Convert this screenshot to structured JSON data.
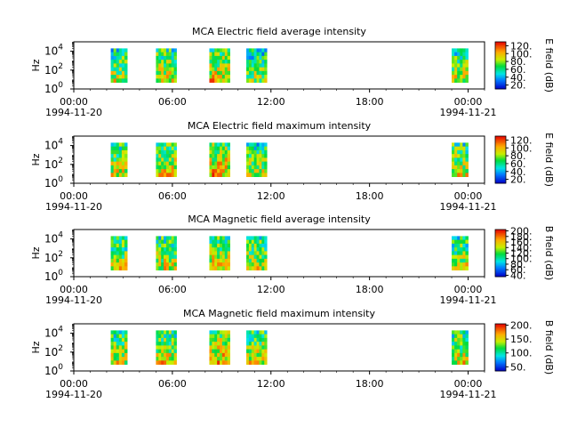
{
  "chart_data": [
    {
      "type": "heatmap",
      "title": "MCA  Electric field average intensity",
      "ylabel": "Hz",
      "yticks": [
        {
          "base": "10",
          "exp": "0"
        },
        {
          "base": "10",
          "exp": "2"
        },
        {
          "base": "10",
          "exp": "4"
        }
      ],
      "xticks": [
        "00:00",
        "06:00",
        "12:00",
        "18:00",
        "00:00"
      ],
      "xdates": [
        "1994-11-20",
        "1994-11-21"
      ],
      "xlim": [
        "1994-11-20 00:00",
        "1994-11-21 01:00"
      ],
      "ylim": [
        1,
        100000
      ],
      "yscale": "log",
      "frequency_range_hz": [
        5,
        20000
      ],
      "colorbar": {
        "label": "E field (dB)",
        "ticks": [
          "120",
          "100",
          "80",
          "60",
          "40",
          "20"
        ],
        "range": [
          10,
          130
        ],
        "scheme": "rainbow"
      },
      "data_intervals": [
        {
          "start": "02:15",
          "end": "03:15",
          "mean_level": 70
        },
        {
          "start": "05:00",
          "end": "06:15",
          "mean_level": 75
        },
        {
          "start": "08:15",
          "end": "09:30",
          "mean_level": 80
        },
        {
          "start": "10:30",
          "end": "11:45",
          "mean_level": 65
        },
        {
          "start": "23:00",
          "end": "00:00",
          "mean_level": 70
        }
      ]
    },
    {
      "type": "heatmap",
      "title": "MCA  Electric field maximum intensity",
      "ylabel": "Hz",
      "yticks": [
        {
          "base": "10",
          "exp": "0"
        },
        {
          "base": "10",
          "exp": "2"
        },
        {
          "base": "10",
          "exp": "4"
        }
      ],
      "xticks": [
        "00:00",
        "06:00",
        "12:00",
        "18:00",
        "00:00"
      ],
      "xdates": [
        "1994-11-20",
        "1994-11-21"
      ],
      "xlim": [
        "1994-11-20 00:00",
        "1994-11-21 01:00"
      ],
      "ylim": [
        1,
        100000
      ],
      "yscale": "log",
      "frequency_range_hz": [
        5,
        20000
      ],
      "colorbar": {
        "label": "E field (dB)",
        "ticks": [
          "120",
          "100",
          "80",
          "60",
          "40",
          "20"
        ],
        "range": [
          10,
          130
        ],
        "scheme": "rainbow"
      },
      "data_intervals": [
        {
          "start": "02:15",
          "end": "03:15",
          "mean_level": 75
        },
        {
          "start": "05:00",
          "end": "06:15",
          "mean_level": 80
        },
        {
          "start": "08:15",
          "end": "09:30",
          "mean_level": 85
        },
        {
          "start": "10:30",
          "end": "11:45",
          "mean_level": 70
        },
        {
          "start": "23:00",
          "end": "00:00",
          "mean_level": 75
        }
      ]
    },
    {
      "type": "heatmap",
      "title": "MCA  Magnetic field average intensity",
      "ylabel": "Hz",
      "yticks": [
        {
          "base": "10",
          "exp": "0"
        },
        {
          "base": "10",
          "exp": "2"
        },
        {
          "base": "10",
          "exp": "4"
        }
      ],
      "xticks": [
        "00:00",
        "06:00",
        "12:00",
        "18:00",
        "00:00"
      ],
      "xdates": [
        "1994-11-20",
        "1994-11-21"
      ],
      "xlim": [
        "1994-11-20 00:00",
        "1994-11-21 01:00"
      ],
      "ylim": [
        1,
        100000
      ],
      "yscale": "log",
      "frequency_range_hz": [
        5,
        20000
      ],
      "colorbar": {
        "label": "B field (dB)",
        "ticks": [
          "200",
          "180",
          "160",
          "140",
          "120",
          "100",
          "80",
          "60",
          "40"
        ],
        "range": [
          35,
          205
        ],
        "scheme": "rainbow"
      },
      "data_intervals": [
        {
          "start": "02:15",
          "end": "03:15",
          "mean_level": 120
        },
        {
          "start": "05:00",
          "end": "06:15",
          "mean_level": 125
        },
        {
          "start": "08:15",
          "end": "09:30",
          "mean_level": 135
        },
        {
          "start": "10:30",
          "end": "11:45",
          "mean_level": 125
        },
        {
          "start": "23:00",
          "end": "00:00",
          "mean_level": 120
        }
      ]
    },
    {
      "type": "heatmap",
      "title": "MCA  Magnetic field maximum intensity",
      "ylabel": "Hz",
      "yticks": [
        {
          "base": "10",
          "exp": "0"
        },
        {
          "base": "10",
          "exp": "2"
        },
        {
          "base": "10",
          "exp": "4"
        }
      ],
      "xticks": [
        "00:00",
        "06:00",
        "12:00",
        "18:00",
        "00:00"
      ],
      "xdates": [
        "1994-11-20",
        "1994-11-21"
      ],
      "xlim": [
        "1994-11-20 00:00",
        "1994-11-21 01:00"
      ],
      "ylim": [
        1,
        100000
      ],
      "yscale": "log",
      "frequency_range_hz": [
        5,
        20000
      ],
      "colorbar": {
        "label": "B field (dB)",
        "ticks": [
          "200",
          "150",
          "100",
          "50"
        ],
        "range": [
          35,
          205
        ],
        "scheme": "rainbow"
      },
      "data_intervals": [
        {
          "start": "02:15",
          "end": "03:15",
          "mean_level": 125
        },
        {
          "start": "05:00",
          "end": "06:15",
          "mean_level": 130
        },
        {
          "start": "08:15",
          "end": "09:30",
          "mean_level": 140
        },
        {
          "start": "10:30",
          "end": "11:45",
          "mean_level": 130
        },
        {
          "start": "23:00",
          "end": "00:00",
          "mean_level": 125
        }
      ]
    }
  ]
}
